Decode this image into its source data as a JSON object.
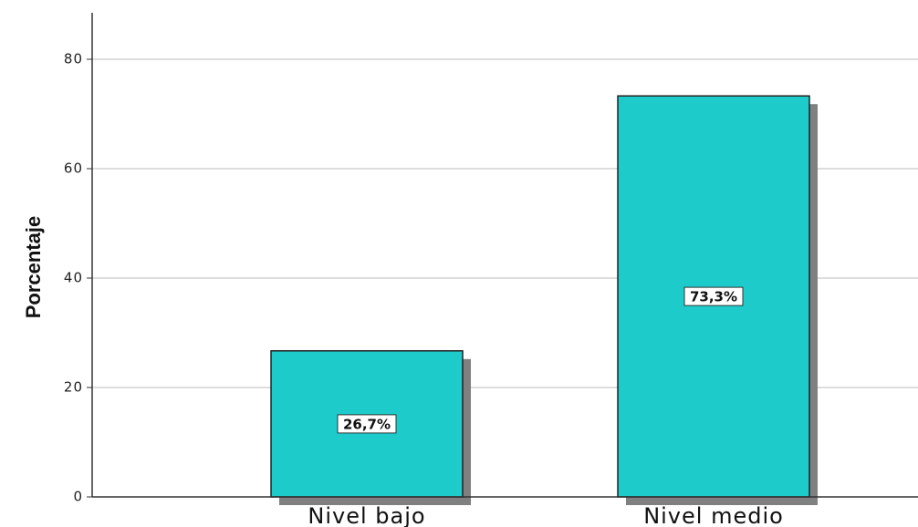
{
  "chart_data": {
    "type": "bar",
    "categories": [
      "Nivel bajo",
      "Nivel medio"
    ],
    "values": [
      26.7,
      73.3
    ],
    "data_labels": [
      "26,7%",
      "73,3%"
    ],
    "title": "",
    "xlabel": "",
    "ylabel": "Porcentaje",
    "ylim": [
      0,
      88
    ],
    "yticks": [
      0,
      20,
      40,
      60,
      80
    ],
    "grid": true,
    "bar_color": "#1ECBCB",
    "shadow_color": "#808080",
    "gridline_color": "#BBBBBB"
  }
}
